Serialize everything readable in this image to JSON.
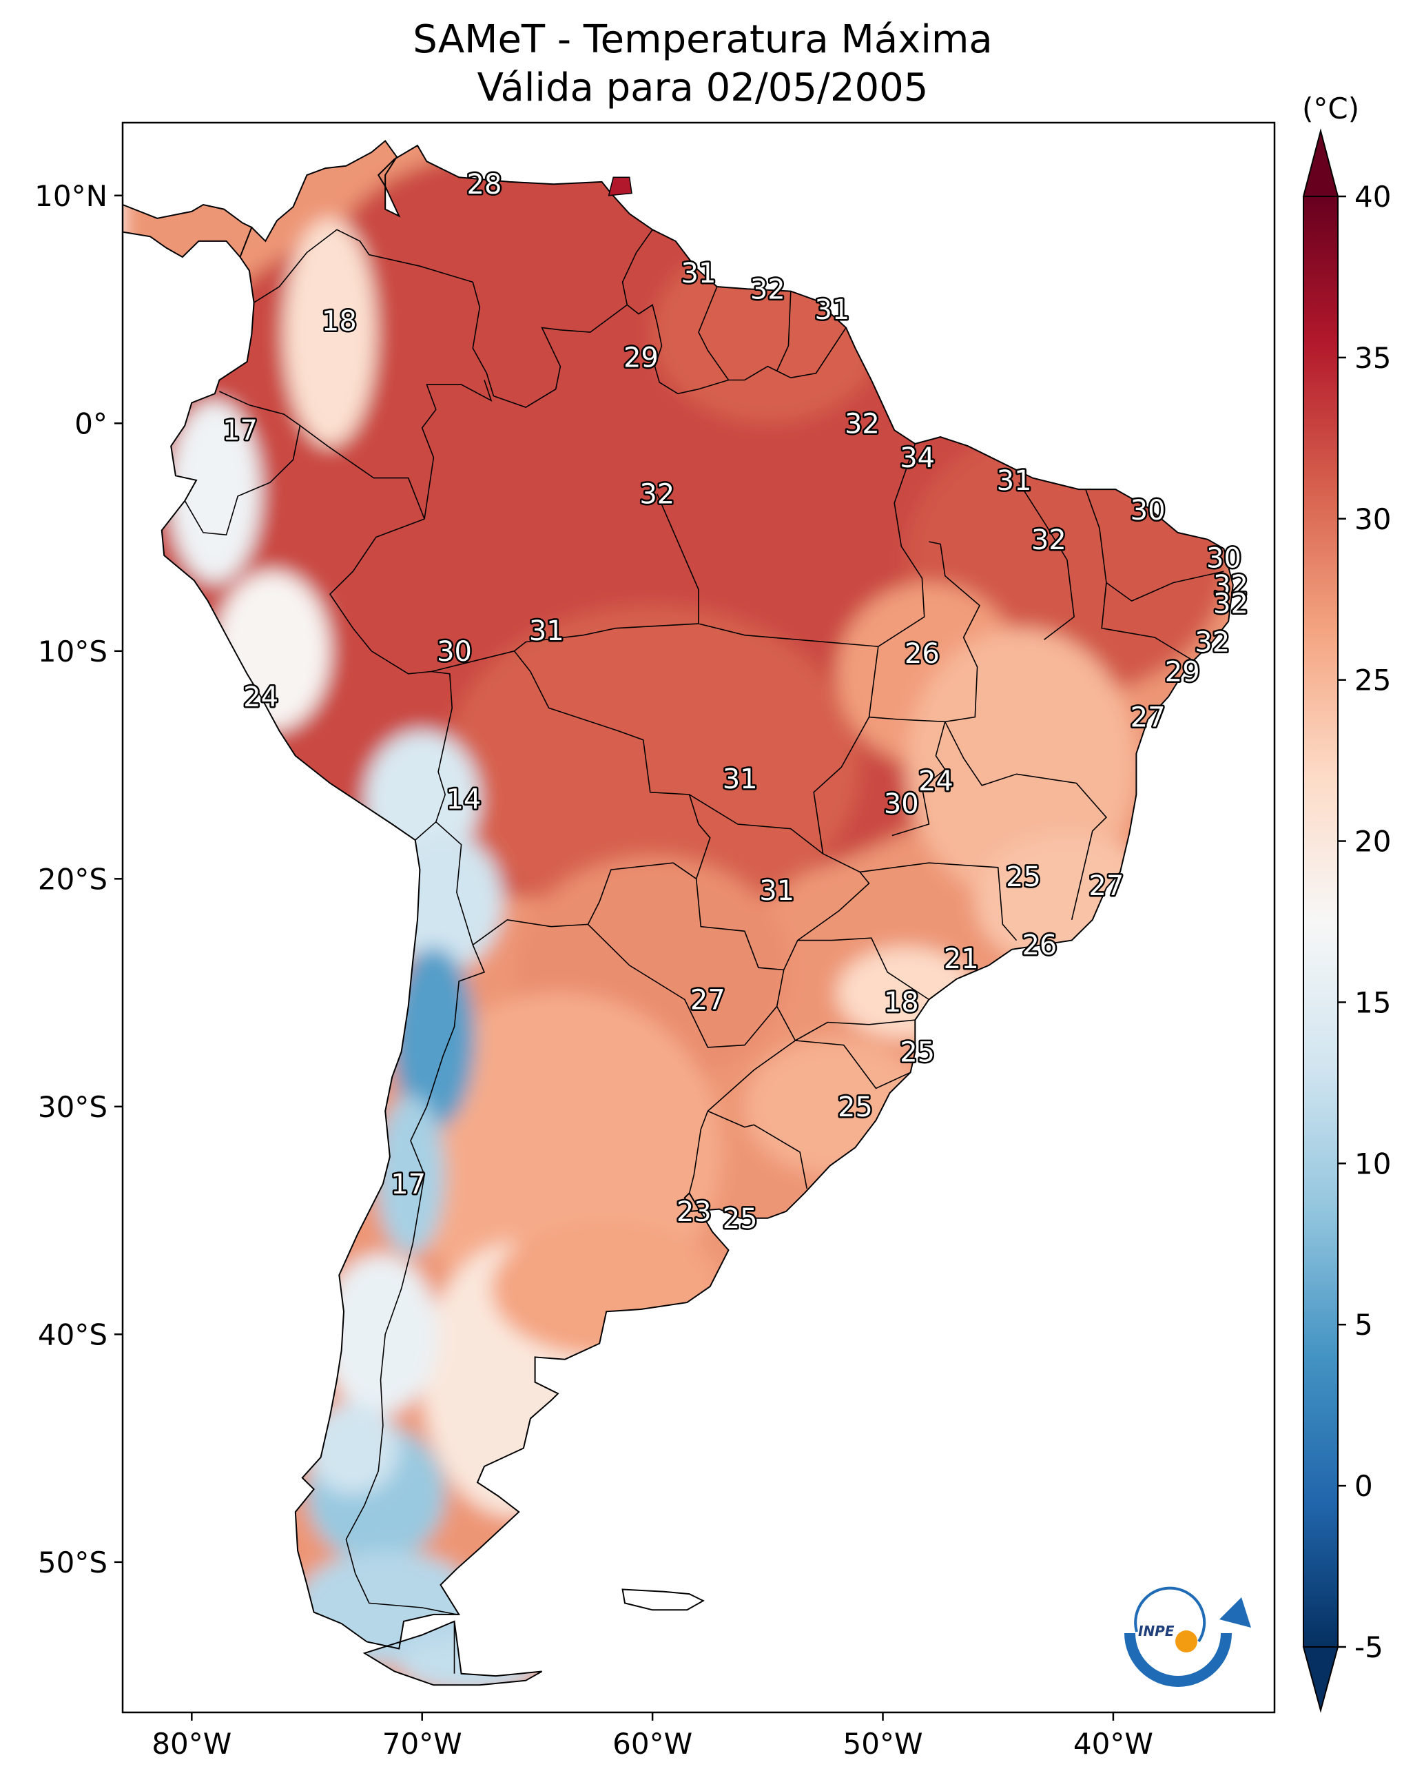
{
  "title": "SAMeT - Temperatura Máxima",
  "subtitle": "Válida para 02/05/2005",
  "colorbar": {
    "unit": "(°C)",
    "ticks": [
      "40",
      "35",
      "30",
      "25",
      "20",
      "15",
      "10",
      "5",
      "0",
      "-5"
    ],
    "range": [
      -5,
      40
    ],
    "colormap": "RdBu_r",
    "colors": [
      "#053061",
      "#2166ac",
      "#4393c3",
      "#92c5de",
      "#d1e5f0",
      "#f7f7f7",
      "#fddbc7",
      "#f4a582",
      "#d6604d",
      "#b2182b",
      "#67001f"
    ]
  },
  "axes": {
    "lat_ticks": [
      "10°N",
      "0°",
      "10°S",
      "20°S",
      "30°S",
      "40°S",
      "50°S"
    ],
    "lon_ticks": [
      "80°W",
      "70°W",
      "60°W",
      "50°W",
      "40°W"
    ]
  },
  "station_labels": [
    {
      "text": "28",
      "lon": -67.3,
      "lat": 10.5
    },
    {
      "text": "18",
      "lon": -73.6,
      "lat": 4.5
    },
    {
      "text": "31",
      "lon": -58.0,
      "lat": 6.6
    },
    {
      "text": "32",
      "lon": -55.0,
      "lat": 5.9
    },
    {
      "text": "31",
      "lon": -52.2,
      "lat": 5.0
    },
    {
      "text": "29",
      "lon": -60.5,
      "lat": 2.9
    },
    {
      "text": "17",
      "lon": -77.9,
      "lat": -0.3
    },
    {
      "text": "32",
      "lon": -50.9,
      "lat": 0.0
    },
    {
      "text": "34",
      "lon": -48.5,
      "lat": -1.5
    },
    {
      "text": "32",
      "lon": -59.8,
      "lat": -3.1
    },
    {
      "text": "31",
      "lon": -44.3,
      "lat": -2.5
    },
    {
      "text": "30",
      "lon": -38.5,
      "lat": -3.8
    },
    {
      "text": "32",
      "lon": -42.8,
      "lat": -5.1
    },
    {
      "text": "30",
      "lon": -35.2,
      "lat": -5.9
    },
    {
      "text": "32",
      "lon": -34.9,
      "lat": -7.1
    },
    {
      "text": "32",
      "lon": -34.9,
      "lat": -7.9
    },
    {
      "text": "31",
      "lon": -64.6,
      "lat": -9.1
    },
    {
      "text": "30",
      "lon": -68.6,
      "lat": -10.0
    },
    {
      "text": "26",
      "lon": -48.3,
      "lat": -10.1
    },
    {
      "text": "32",
      "lon": -35.7,
      "lat": -9.6
    },
    {
      "text": "29",
      "lon": -37.0,
      "lat": -10.9
    },
    {
      "text": "24",
      "lon": -77.0,
      "lat": -12.0
    },
    {
      "text": "27",
      "lon": -38.5,
      "lat": -12.9
    },
    {
      "text": "14",
      "lon": -68.2,
      "lat": -16.5
    },
    {
      "text": "31",
      "lon": -56.2,
      "lat": -15.6
    },
    {
      "text": "24",
      "lon": -47.7,
      "lat": -15.7
    },
    {
      "text": "30",
      "lon": -49.2,
      "lat": -16.7
    },
    {
      "text": "25",
      "lon": -43.9,
      "lat": -19.9
    },
    {
      "text": "27",
      "lon": -40.3,
      "lat": -20.3
    },
    {
      "text": "31",
      "lon": -54.6,
      "lat": -20.5
    },
    {
      "text": "26",
      "lon": -43.2,
      "lat": -22.9
    },
    {
      "text": "21",
      "lon": -46.6,
      "lat": -23.5
    },
    {
      "text": "27",
      "lon": -57.6,
      "lat": -25.3
    },
    {
      "text": "18",
      "lon": -49.2,
      "lat": -25.4
    },
    {
      "text": "25",
      "lon": -48.5,
      "lat": -27.6
    },
    {
      "text": "25",
      "lon": -51.2,
      "lat": -30.0
    },
    {
      "text": "17",
      "lon": -70.6,
      "lat": -33.4
    },
    {
      "text": "23",
      "lon": -58.2,
      "lat": -34.6
    },
    {
      "text": "25",
      "lon": -56.2,
      "lat": -34.9
    }
  ],
  "logo": {
    "text": "INPE"
  }
}
